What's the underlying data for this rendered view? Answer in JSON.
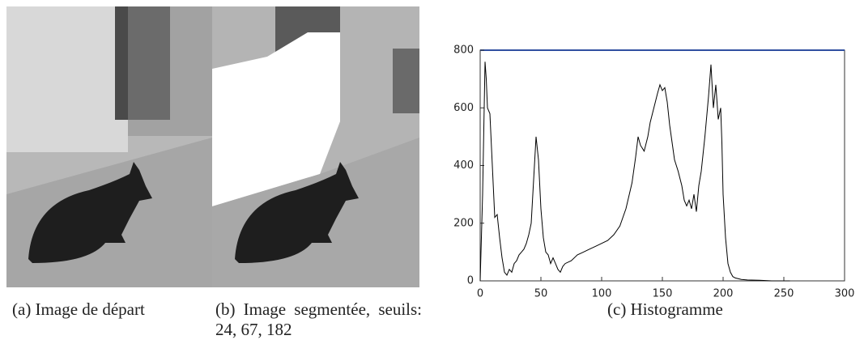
{
  "figure": {
    "captions": [
      "(a) Image de départ",
      "(b) Image segmentée, seuils: 24, 67, 182",
      "(c) Histogramme"
    ]
  },
  "chart_data": {
    "type": "line",
    "x": [
      0,
      2,
      4,
      5,
      6,
      8,
      10,
      12,
      14,
      16,
      18,
      20,
      22,
      24,
      26,
      28,
      30,
      32,
      34,
      36,
      38,
      40,
      42,
      44,
      46,
      48,
      50,
      52,
      54,
      56,
      58,
      60,
      62,
      64,
      66,
      68,
      70,
      75,
      80,
      85,
      90,
      95,
      100,
      105,
      110,
      115,
      120,
      125,
      128,
      130,
      132,
      135,
      138,
      140,
      143,
      146,
      148,
      150,
      152,
      154,
      156,
      158,
      160,
      163,
      166,
      168,
      170,
      172,
      174,
      176,
      178,
      180,
      182,
      185,
      188,
      190,
      192,
      194,
      196,
      198,
      199,
      200,
      202,
      204,
      206,
      208,
      210,
      215,
      220,
      230,
      240,
      255
    ],
    "series": [
      {
        "color": "#000000",
        "values": [
          0,
          300,
          760,
          700,
          600,
          580,
          400,
          220,
          230,
          150,
          80,
          30,
          20,
          40,
          30,
          60,
          70,
          90,
          100,
          110,
          130,
          160,
          200,
          350,
          500,
          420,
          250,
          150,
          100,
          90,
          60,
          80,
          60,
          40,
          30,
          50,
          60,
          70,
          90,
          100,
          110,
          120,
          130,
          140,
          160,
          190,
          250,
          340,
          430,
          500,
          470,
          450,
          500,
          550,
          600,
          650,
          680,
          660,
          670,
          620,
          540,
          480,
          420,
          380,
          330,
          280,
          260,
          280,
          250,
          300,
          240,
          330,
          380,
          500,
          640,
          750,
          600,
          680,
          560,
          600,
          480,
          300,
          150,
          60,
          30,
          15,
          10,
          5,
          3,
          2,
          0,
          0
        ]
      }
    ],
    "xlim": [
      0,
      300
    ],
    "ylim": [
      0,
      800
    ],
    "xticks": [
      0,
      50,
      100,
      150,
      200,
      250,
      300
    ],
    "yticks": [
      0,
      200,
      400,
      600,
      800
    ]
  }
}
